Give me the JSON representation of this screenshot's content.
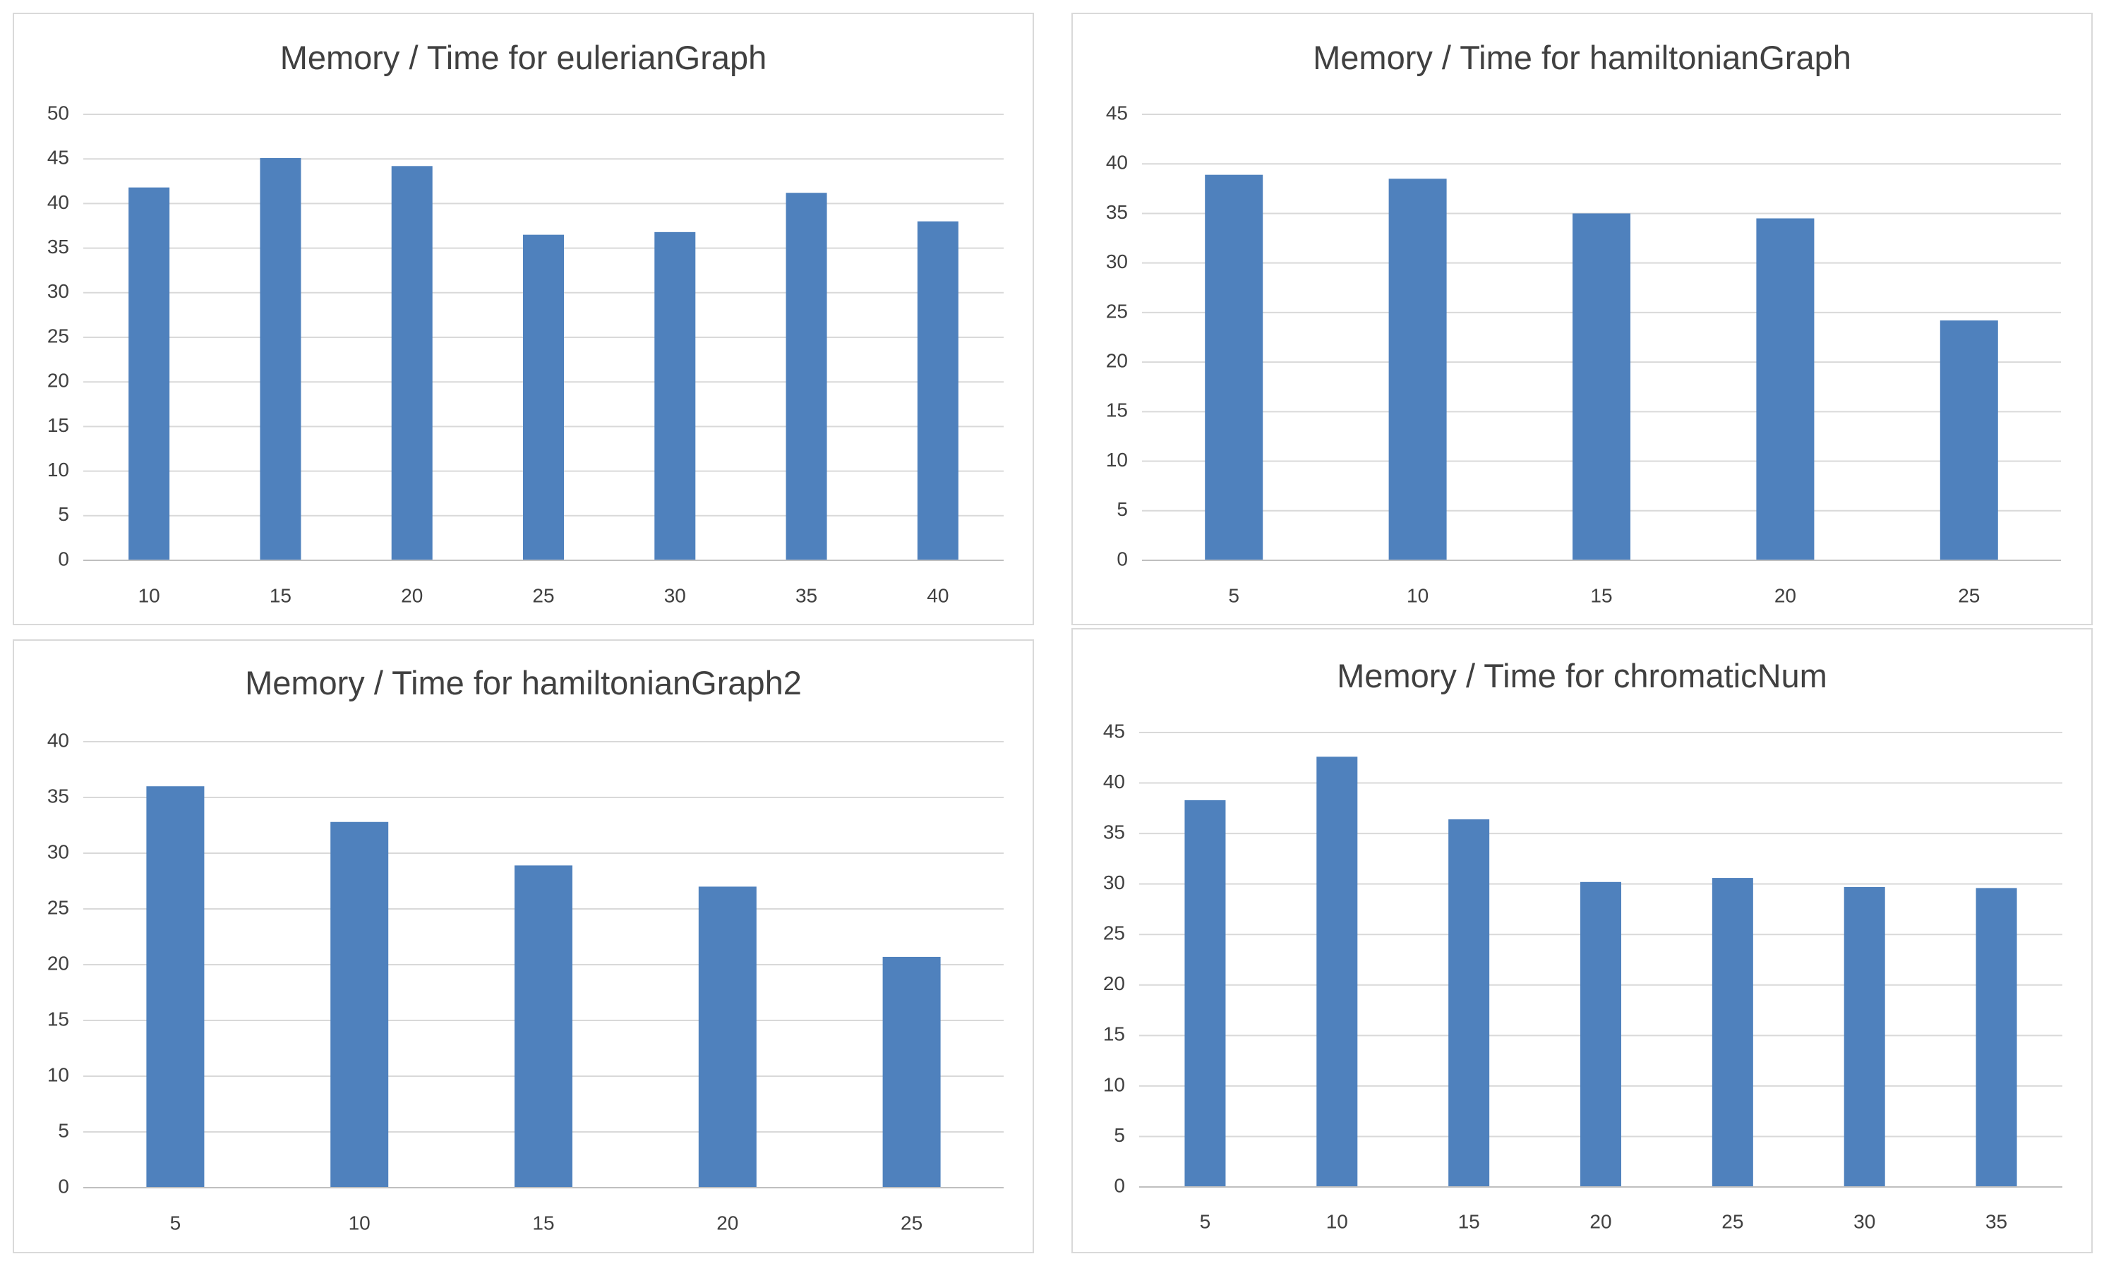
{
  "colors": {
    "bar": "#4f81bd",
    "grid": "#d9d9d9",
    "axis": "#bfbfbf",
    "text": "#404040",
    "title": "#404040",
    "border": "#d9d9d9"
  },
  "chart_data": [
    {
      "type": "bar",
      "title": "Memory / Time for eulerianGraph",
      "xlabel": "",
      "ylabel": "",
      "categories": [
        "10",
        "15",
        "20",
        "25",
        "30",
        "35",
        "40"
      ],
      "values": [
        41.8,
        45.1,
        44.2,
        36.5,
        36.8,
        41.2,
        38.0
      ],
      "ylim": [
        0,
        50
      ],
      "ystep": 5,
      "yticks": [
        "0",
        "5",
        "10",
        "15",
        "20",
        "25",
        "30",
        "35",
        "40",
        "45",
        "50"
      ],
      "grid": true,
      "legend": "none"
    },
    {
      "type": "bar",
      "title": "Memory / Time for hamiltonianGraph",
      "xlabel": "",
      "ylabel": "",
      "categories": [
        "5",
        "10",
        "15",
        "20",
        "25"
      ],
      "values": [
        38.9,
        38.5,
        35.0,
        34.5,
        24.2
      ],
      "ylim": [
        0,
        45
      ],
      "ystep": 5,
      "yticks": [
        "0",
        "5",
        "10",
        "15",
        "20",
        "25",
        "30",
        "35",
        "40",
        "45"
      ],
      "grid": true,
      "legend": "none"
    },
    {
      "type": "bar",
      "title": "Memory / Time for hamiltonianGraph2",
      "xlabel": "",
      "ylabel": "",
      "categories": [
        "5",
        "10",
        "15",
        "20",
        "25"
      ],
      "values": [
        36.0,
        32.8,
        28.9,
        27.0,
        20.7
      ],
      "ylim": [
        0,
        40
      ],
      "ystep": 5,
      "yticks": [
        "0",
        "5",
        "10",
        "15",
        "20",
        "25",
        "30",
        "35",
        "40"
      ],
      "grid": true,
      "legend": "none"
    },
    {
      "type": "bar",
      "title": "Memory / Time for chromaticNum",
      "xlabel": "",
      "ylabel": "",
      "categories": [
        "5",
        "10",
        "15",
        "20",
        "25",
        "30",
        "35"
      ],
      "values": [
        38.3,
        42.6,
        36.4,
        30.2,
        30.6,
        29.7,
        29.6
      ],
      "ylim": [
        0,
        45
      ],
      "ystep": 5,
      "yticks": [
        "0",
        "5",
        "10",
        "15",
        "20",
        "25",
        "30",
        "35",
        "40",
        "45"
      ],
      "grid": true,
      "legend": "none"
    }
  ]
}
